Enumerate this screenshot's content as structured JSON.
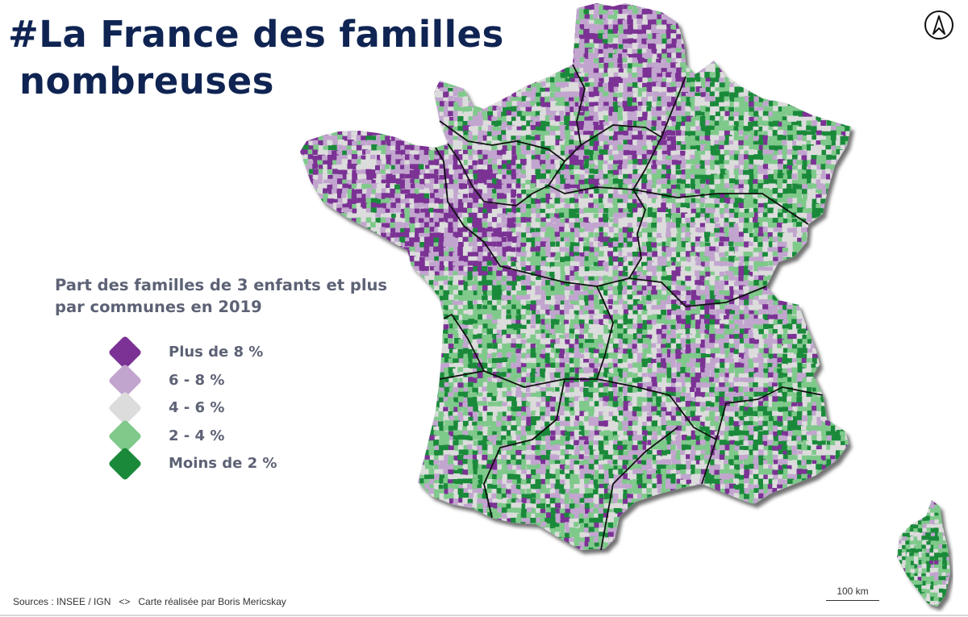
{
  "title": {
    "line1": "#La France des familles",
    "line2": "nombreuses"
  },
  "legend": {
    "title_line1": "Part des familles de 3 enfants et plus",
    "title_line2": "par communes en 2019",
    "classes": [
      {
        "label": "Plus de 8 %",
        "color": "#7b3294"
      },
      {
        "label": "6 - 8 %",
        "color": "#c2a5cf"
      },
      {
        "label": "4 - 6 %",
        "color": "#dcdcdc"
      },
      {
        "label": "2 - 4 %",
        "color": "#7fc98b"
      },
      {
        "label": "Moins de 2 %",
        "color": "#1a8a3a"
      }
    ]
  },
  "source": {
    "left": "Sources : INSEE / IGN",
    "separator": "<>",
    "right": "Carte réalisée par Boris Mericskay"
  },
  "scale": {
    "label": "100 km"
  },
  "north_arrow": {
    "icon": "north-arrow-icon"
  }
}
